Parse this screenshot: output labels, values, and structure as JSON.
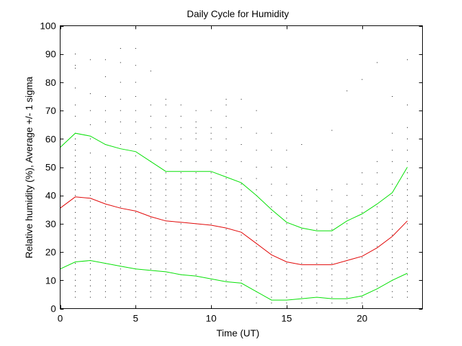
{
  "chart_data": {
    "type": "line",
    "title": "Daily Cycle for Humidity",
    "xlabel": "Time (UT)",
    "ylabel": "Relative humidity (%), Average +/- 1 sigma",
    "xlim": [
      0,
      24
    ],
    "ylim": [
      0,
      100
    ],
    "xticks": [
      0,
      5,
      10,
      15,
      20
    ],
    "yticks": [
      0,
      10,
      20,
      30,
      40,
      50,
      60,
      70,
      80,
      90,
      100
    ],
    "x": [
      0,
      1,
      2,
      3,
      4,
      5,
      6,
      7,
      8,
      9,
      10,
      11,
      12,
      13,
      14,
      15,
      16,
      17,
      18,
      19,
      20,
      21,
      22,
      23
    ],
    "series": [
      {
        "name": "Average + 1 sigma",
        "color": "#00e000",
        "values": [
          57,
          62,
          61,
          58,
          56.5,
          55.5,
          52,
          48.5,
          48.5,
          48.5,
          48.5,
          46.5,
          44.5,
          40,
          35,
          30.5,
          28.5,
          27.5,
          27.5,
          31,
          33.5,
          37,
          41,
          50
        ]
      },
      {
        "name": "Average",
        "color": "#e00000",
        "values": [
          35.5,
          39.5,
          39,
          37,
          35.5,
          34.5,
          32.5,
          31,
          30.5,
          30,
          29.5,
          28.5,
          27,
          23,
          19,
          16.5,
          15.5,
          15.5,
          15.5,
          17,
          18.5,
          21.5,
          25.5,
          31
        ]
      },
      {
        "name": "Average - 1 sigma",
        "color": "#00e000",
        "values": [
          14,
          16.5,
          17,
          16,
          15,
          14,
          13.5,
          13,
          12,
          11.5,
          10.5,
          9.5,
          9,
          6,
          3,
          3,
          3.5,
          4,
          3.5,
          3.5,
          4.5,
          7,
          10,
          12.5
        ]
      }
    ],
    "scatter_columns": [
      {
        "x": 0,
        "y": [
          2,
          4,
          6,
          8,
          10,
          12,
          14,
          16,
          18,
          20,
          22,
          24,
          26,
          28,
          30,
          32,
          34,
          36,
          38,
          40,
          42,
          44,
          46,
          48,
          50,
          52
        ]
      },
      {
        "x": 1,
        "y": [
          4,
          6,
          8,
          10,
          12,
          14,
          16,
          18,
          20,
          22,
          24,
          26,
          28,
          30,
          32,
          34,
          36,
          38,
          40,
          42,
          44,
          46,
          48,
          50,
          52,
          54,
          56,
          58,
          60,
          62,
          68,
          72,
          78,
          85,
          86,
          90
        ]
      },
      {
        "x": 2,
        "y": [
          4,
          6,
          8,
          10,
          12,
          14,
          16,
          18,
          20,
          22,
          24,
          26,
          28,
          30,
          32,
          34,
          36,
          38,
          40,
          42,
          44,
          46,
          48,
          50,
          55,
          60,
          65,
          70,
          76,
          88
        ]
      },
      {
        "x": 3,
        "y": [
          4,
          6,
          8,
          10,
          12,
          14,
          16,
          18,
          20,
          22,
          24,
          26,
          28,
          30,
          32,
          34,
          36,
          38,
          40,
          42,
          44,
          46,
          48,
          50,
          54,
          58,
          62,
          66,
          70,
          75,
          82,
          88
        ]
      },
      {
        "x": 4,
        "y": [
          4,
          6,
          8,
          10,
          12,
          14,
          16,
          18,
          20,
          22,
          24,
          26,
          28,
          30,
          32,
          34,
          36,
          38,
          40,
          42,
          44,
          46,
          48,
          50,
          54,
          58,
          62,
          66,
          70,
          74,
          80,
          87,
          92
        ]
      },
      {
        "x": 5,
        "y": [
          4,
          6,
          8,
          10,
          12,
          14,
          16,
          18,
          20,
          22,
          24,
          26,
          28,
          30,
          32,
          34,
          36,
          38,
          40,
          42,
          44,
          46,
          48,
          50,
          54,
          58,
          62,
          66,
          70,
          75,
          80,
          86,
          92
        ]
      },
      {
        "x": 6,
        "y": [
          4,
          6,
          8,
          10,
          12,
          14,
          16,
          18,
          20,
          22,
          24,
          26,
          28,
          30,
          32,
          34,
          36,
          38,
          40,
          42,
          44,
          46,
          48,
          52,
          56,
          60,
          64,
          68,
          72,
          84
        ]
      },
      {
        "x": 7,
        "y": [
          4,
          6,
          8,
          10,
          12,
          14,
          16,
          18,
          20,
          22,
          24,
          26,
          28,
          30,
          32,
          34,
          36,
          38,
          40,
          42,
          44,
          46,
          48,
          52,
          56,
          60,
          64,
          68,
          72,
          74
        ]
      },
      {
        "x": 8,
        "y": [
          4,
          6,
          8,
          10,
          12,
          14,
          16,
          18,
          20,
          22,
          24,
          26,
          28,
          30,
          32,
          34,
          36,
          38,
          40,
          42,
          44,
          46,
          48,
          52,
          56,
          60,
          64,
          68,
          72
        ]
      },
      {
        "x": 9,
        "y": [
          4,
          6,
          8,
          10,
          12,
          14,
          16,
          18,
          20,
          22,
          24,
          26,
          28,
          30,
          32,
          34,
          36,
          38,
          40,
          42,
          44,
          46,
          48,
          52,
          56,
          60,
          62,
          64,
          66,
          70
        ]
      },
      {
        "x": 10,
        "y": [
          4,
          6,
          8,
          10,
          12,
          14,
          16,
          18,
          20,
          22,
          24,
          26,
          28,
          30,
          32,
          34,
          36,
          38,
          40,
          42,
          44,
          46,
          48,
          52,
          56,
          60,
          62,
          64,
          70
        ]
      },
      {
        "x": 11,
        "y": [
          4,
          6,
          8,
          10,
          12,
          14,
          16,
          18,
          20,
          22,
          24,
          26,
          28,
          30,
          32,
          34,
          36,
          38,
          40,
          42,
          44,
          46,
          48,
          52,
          56,
          60,
          64,
          68,
          72,
          74
        ]
      },
      {
        "x": 12,
        "y": [
          4,
          6,
          8,
          10,
          12,
          14,
          16,
          18,
          20,
          22,
          24,
          26,
          28,
          30,
          32,
          34,
          36,
          38,
          40,
          42,
          44,
          46,
          52,
          58,
          64,
          74
        ]
      },
      {
        "x": 13,
        "y": [
          2,
          4,
          6,
          8,
          10,
          12,
          14,
          16,
          18,
          20,
          22,
          24,
          26,
          28,
          30,
          32,
          34,
          36,
          38,
          40,
          42,
          46,
          50,
          56,
          62,
          70
        ]
      },
      {
        "x": 14,
        "y": [
          2,
          4,
          6,
          8,
          10,
          12,
          14,
          16,
          18,
          20,
          22,
          24,
          26,
          28,
          30,
          32,
          34,
          36,
          40,
          44,
          50,
          56,
          62
        ]
      },
      {
        "x": 15,
        "y": [
          2,
          4,
          6,
          8,
          10,
          12,
          14,
          16,
          18,
          20,
          22,
          24,
          26,
          28,
          30,
          32,
          34,
          36,
          40,
          44,
          50,
          56
        ]
      },
      {
        "x": 16,
        "y": [
          2,
          4,
          6,
          8,
          10,
          12,
          14,
          16,
          18,
          20,
          22,
          24,
          26,
          28,
          30,
          32,
          34,
          38,
          40,
          58
        ]
      },
      {
        "x": 17,
        "y": [
          2,
          4,
          6,
          8,
          10,
          12,
          14,
          16,
          18,
          20,
          22,
          24,
          26,
          28,
          30,
          32,
          34,
          38,
          42
        ]
      },
      {
        "x": 18,
        "y": [
          2,
          4,
          6,
          8,
          10,
          12,
          14,
          16,
          18,
          20,
          22,
          24,
          26,
          28,
          30,
          32,
          34,
          38,
          42,
          63
        ]
      },
      {
        "x": 19,
        "y": [
          2,
          4,
          6,
          8,
          10,
          12,
          14,
          16,
          18,
          20,
          22,
          24,
          26,
          28,
          30,
          32,
          34,
          36,
          40,
          44,
          77
        ]
      },
      {
        "x": 20,
        "y": [
          2,
          4,
          6,
          8,
          10,
          12,
          14,
          16,
          18,
          20,
          22,
          24,
          26,
          28,
          30,
          32,
          34,
          36,
          40,
          44,
          48,
          81
        ]
      },
      {
        "x": 21,
        "y": [
          4,
          6,
          8,
          10,
          12,
          14,
          16,
          18,
          20,
          22,
          24,
          26,
          28,
          30,
          32,
          34,
          36,
          40,
          44,
          48,
          52,
          87
        ]
      },
      {
        "x": 22,
        "y": [
          4,
          6,
          8,
          10,
          12,
          14,
          16,
          18,
          20,
          22,
          24,
          26,
          28,
          30,
          32,
          34,
          36,
          38,
          40,
          44,
          48,
          52,
          56,
          62,
          75
        ]
      },
      {
        "x": 23,
        "y": [
          4,
          6,
          8,
          10,
          12,
          14,
          16,
          18,
          20,
          22,
          24,
          26,
          28,
          30,
          32,
          34,
          36,
          38,
          40,
          42,
          44,
          46,
          48,
          52,
          56,
          60,
          64,
          72,
          88
        ]
      }
    ]
  }
}
